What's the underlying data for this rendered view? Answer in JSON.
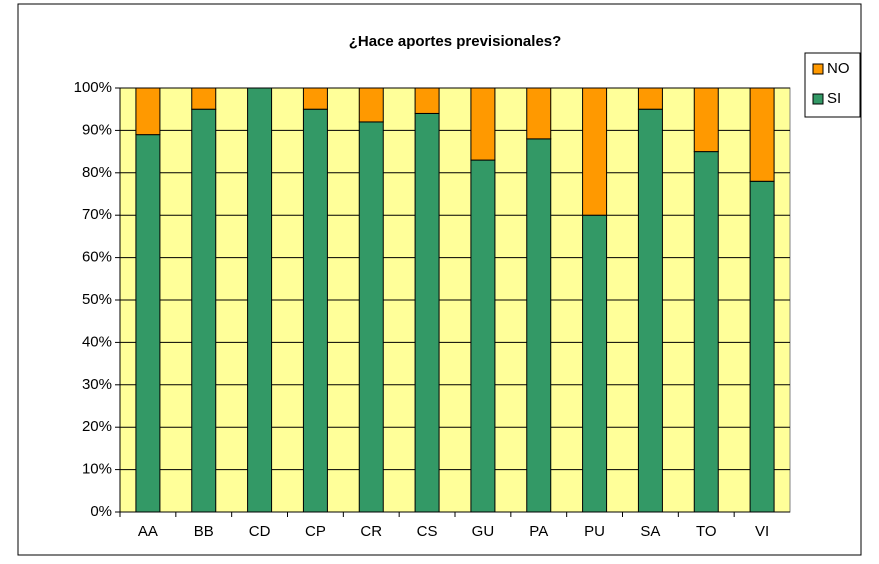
{
  "chart_data": {
    "type": "stacked_bar",
    "title": "¿Hace aportes previsionales?",
    "categories": [
      "AA",
      "BB",
      "CD",
      "CP",
      "CR",
      "CS",
      "GU",
      "PA",
      "PU",
      "SA",
      "TO",
      "VI"
    ],
    "series": [
      {
        "name": "SI",
        "color": "#339966",
        "values": [
          89,
          95,
          100,
          95,
          92,
          94,
          83,
          88,
          70,
          95,
          85,
          78
        ]
      },
      {
        "name": "NO",
        "color": "#ff9900",
        "values": [
          11,
          5,
          0,
          5,
          8,
          6,
          17,
          12,
          30,
          5,
          15,
          22
        ]
      }
    ],
    "ylim": [
      0,
      100
    ],
    "yticks": [
      {
        "value": 0,
        "label": "0%"
      },
      {
        "value": 10,
        "label": "10%"
      },
      {
        "value": 20,
        "label": "20%"
      },
      {
        "value": 30,
        "label": "30%"
      },
      {
        "value": 40,
        "label": "40%"
      },
      {
        "value": 50,
        "label": "50%"
      },
      {
        "value": 60,
        "label": "60%"
      },
      {
        "value": 70,
        "label": "70%"
      },
      {
        "value": 80,
        "label": "80%"
      },
      {
        "value": 90,
        "label": "90%"
      },
      {
        "value": 100,
        "label": "100%"
      }
    ],
    "grid": true,
    "legend": "right",
    "plot_background": "#ffff99"
  }
}
